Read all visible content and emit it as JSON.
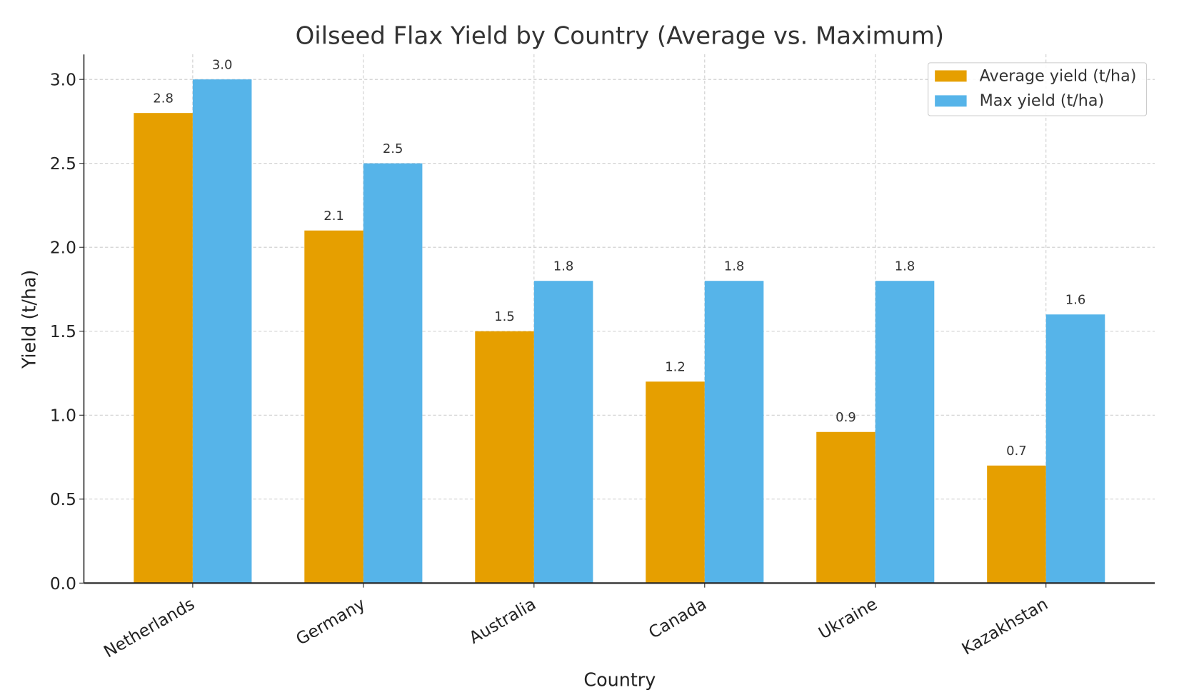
{
  "chart_data": {
    "type": "bar",
    "title": "Oilseed Flax Yield by Country (Average vs. Maximum)",
    "xlabel": "Country",
    "ylabel": "Yield (t/ha)",
    "ylim": [
      0,
      3.15
    ],
    "yticks": [
      "0.0",
      "0.5",
      "1.0",
      "1.5",
      "2.0",
      "2.5",
      "3.0"
    ],
    "categories": [
      "Netherlands",
      "Germany",
      "Australia",
      "Canada",
      "Ukraine",
      "Kazakhstan"
    ],
    "series": [
      {
        "name": "Average yield (t/ha)",
        "color": "#E69F00",
        "values": [
          2.8,
          2.1,
          1.5,
          1.2,
          0.9,
          0.7
        ]
      },
      {
        "name": "Max yield (t/ha)",
        "color": "#56B4E9",
        "values": [
          3.0,
          2.5,
          1.8,
          1.8,
          1.8,
          1.6
        ]
      }
    ],
    "grid": true,
    "legend": "top-right"
  }
}
